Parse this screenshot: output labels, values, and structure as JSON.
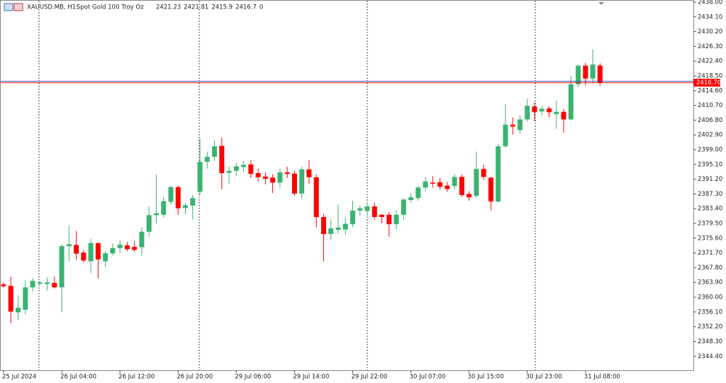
{
  "chart_data": {
    "type": "candlestick",
    "symbol": "XAUUSD.MB, H1:",
    "description": "Spot Gold 100 Troy Oz",
    "info_value": 0,
    "categories": [
      "25 Jul 2024",
      null,
      null,
      null,
      null,
      null,
      null,
      null,
      "26 Jul 04:00",
      null,
      null,
      null,
      null,
      null,
      null,
      null,
      "26 Jul 12:00",
      null,
      null,
      null,
      null,
      null,
      null,
      null,
      "26 Jul 20:00",
      null,
      null,
      null,
      null,
      null,
      null,
      null,
      "29 Jul 06:00",
      null,
      null,
      null,
      null,
      null,
      null,
      null,
      "29 Jul 14:00",
      null,
      null,
      null,
      null,
      null,
      null,
      null,
      "29 Jul 22:00",
      null,
      null,
      null,
      null,
      null,
      null,
      null,
      "30 Jul 07:00",
      null,
      null,
      null,
      null,
      null,
      null,
      null,
      "30 Jul 15:00",
      null,
      null,
      null,
      null,
      null,
      null,
      null,
      "30 Jul 23:00",
      null,
      null,
      null,
      null,
      null,
      null,
      null,
      "31 Jul 08:00",
      null,
      null
    ],
    "open": [
      2363.4,
      2363.0,
      2356.0,
      2356.7,
      2362.6,
      2363.6,
      2363.5,
      2363.8,
      2362.6,
      2373.5,
      2373.8,
      2371.8,
      2369.5,
      2374.3,
      2369.5,
      2371.6,
      2373.0,
      2373.7,
      2373.3,
      2373.2,
      2377.3,
      2381.7,
      2381.8,
      2385.2,
      2389.1,
      2383.6,
      2384.2,
      2387.9,
      2395.8,
      2397.1,
      2400.0,
      2392.9,
      2393.4,
      2394.4,
      2395.1,
      2392.8,
      2391.9,
      2391.6,
      2390.3,
      2393.0,
      2392.7,
      2387.4,
      2393.8,
      2391.7,
      2381.2,
      2376.7,
      2377.8,
      2377.9,
      2379.3,
      2382.9,
      2382.8,
      2384.0,
      2381.8,
      2381.8,
      2379.3,
      2381.8,
      2385.7,
      2386.2,
      2389.0,
      2390.3,
      2390.4,
      2389.5,
      2389.4,
      2391.8,
      2387.3,
      2386.8,
      2393.9,
      2391.6,
      2385.3,
      2399.9,
      2405.6,
      2404.2,
      2407.0,
      2410.4,
      2409.1,
      2409.9,
      2408.4,
      2409.0,
      2407.0,
      2416.3,
      2421.2,
      2417.8,
      2421.23
    ],
    "high": [
      2364.0,
      2365.4,
      2360.5,
      2364.5,
      2365.0,
      2364.3,
      2365.2,
      2365.5,
      2374.0,
      2378.9,
      2377.5,
      2372.5,
      2375.5,
      2374.5,
      2372.2,
      2374.2,
      2375.0,
      2374.6,
      2374.8,
      2378.5,
      2384.0,
      2392.5,
      2386.5,
      2389.5,
      2389.5,
      2385.0,
      2387.0,
      2402.0,
      2398.5,
      2401.5,
      2402.2,
      2394.5,
      2395.5,
      2396.0,
      2396.2,
      2394.0,
      2393.0,
      2392.5,
      2394.0,
      2394.5,
      2393.5,
      2394.5,
      2396.2,
      2392.5,
      2382.0,
      2380.5,
      2384.5,
      2381.0,
      2385.5,
      2384.2,
      2385.0,
      2385.0,
      2382.0,
      2382.5,
      2383.0,
      2386.2,
      2387.5,
      2389.5,
      2391.8,
      2392.0,
      2391.5,
      2390.5,
      2392.5,
      2392.5,
      2388.0,
      2398.5,
      2395.0,
      2391.8,
      2400.5,
      2411.0,
      2407.5,
      2408.0,
      2412.5,
      2411.5,
      2410.5,
      2410.5,
      2412.0,
      2409.8,
      2418.5,
      2421.5,
      2422.0,
      2425.5,
      2421.81
    ],
    "low": [
      2362.5,
      2353.2,
      2354.0,
      2355.5,
      2361.5,
      2363.2,
      2361.8,
      2362.3,
      2356.0,
      2369.5,
      2369.8,
      2369.2,
      2366.3,
      2365.0,
      2368.0,
      2371.0,
      2371.6,
      2372.2,
      2372.0,
      2371.0,
      2376.0,
      2379.5,
      2381.0,
      2384.5,
      2381.8,
      2382.0,
      2380.5,
      2387.0,
      2394.0,
      2396.0,
      2388.5,
      2390.0,
      2392.0,
      2393.2,
      2391.5,
      2390.5,
      2389.8,
      2387.5,
      2389.0,
      2391.5,
      2386.8,
      2386.0,
      2390.0,
      2378.5,
      2369.5,
      2375.2,
      2376.8,
      2376.5,
      2378.5,
      2381.5,
      2381.0,
      2380.5,
      2379.5,
      2376.0,
      2378.0,
      2380.5,
      2385.0,
      2385.5,
      2388.0,
      2389.0,
      2388.5,
      2387.8,
      2388.5,
      2386.5,
      2385.5,
      2386.2,
      2391.0,
      2383.0,
      2385.0,
      2399.5,
      2403.0,
      2403.3,
      2406.5,
      2406.5,
      2408.0,
      2407.5,
      2404.5,
      2403.5,
      2406.8,
      2415.5,
      2416.0,
      2416.5,
      2415.9
    ],
    "close": [
      2362.9,
      2356.2,
      2357.2,
      2362.6,
      2364.3,
      2363.9,
      2363.9,
      2362.6,
      2373.5,
      2374.0,
      2371.5,
      2369.7,
      2374.3,
      2370.0,
      2371.6,
      2373.0,
      2373.9,
      2372.7,
      2372.5,
      2377.3,
      2381.7,
      2382.2,
      2385.4,
      2389.1,
      2383.5,
      2384.3,
      2386.2,
      2395.8,
      2397.1,
      2399.9,
      2392.8,
      2393.4,
      2394.6,
      2395.0,
      2392.6,
      2391.7,
      2391.3,
      2390.3,
      2393.0,
      2392.6,
      2387.4,
      2393.8,
      2391.7,
      2381.2,
      2376.7,
      2378.2,
      2378.4,
      2379.4,
      2382.9,
      2383.5,
      2384.0,
      2381.2,
      2381.2,
      2379.3,
      2381.8,
      2385.8,
      2386.4,
      2389.0,
      2390.6,
      2390.1,
      2389.2,
      2388.6,
      2391.8,
      2387.0,
      2386.4,
      2393.9,
      2391.8,
      2385.3,
      2399.9,
      2405.6,
      2405.1,
      2407.0,
      2410.6,
      2408.9,
      2409.8,
      2408.9,
      2409.0,
      2407.0,
      2416.3,
      2421.2,
      2417.8,
      2421.5,
      2416.7
    ],
    "up_color": "#3cb371",
    "down_color": "#ff0000",
    "ylim": [
      2340.7,
      2438.56
    ],
    "yticks": [
      {
        "value": 2438,
        "label": "2438.00"
      },
      {
        "value": 2434.1,
        "label": "2434.10"
      },
      {
        "value": 2430.2,
        "label": "2430.20"
      },
      {
        "value": 2426.3,
        "label": "2426.30"
      },
      {
        "value": 2422.4,
        "label": "2422.40"
      },
      {
        "value": 2418.5,
        "label": "2418.50"
      },
      {
        "value": 2414.6,
        "label": "2414.60"
      },
      {
        "value": 2410.7,
        "label": "2410.70"
      },
      {
        "value": 2406.8,
        "label": "2406.80"
      },
      {
        "value": 2402.9,
        "label": "2402.90"
      },
      {
        "value": 2399,
        "label": "2399.00"
      },
      {
        "value": 2395.1,
        "label": "2395.10"
      },
      {
        "value": 2391.2,
        "label": "2391.20"
      },
      {
        "value": 2387.3,
        "label": "2387.30"
      },
      {
        "value": 2383.4,
        "label": "2383.40"
      },
      {
        "value": 2379.5,
        "label": "2379.50"
      },
      {
        "value": 2375.6,
        "label": "2375.60"
      },
      {
        "value": 2371.7,
        "label": "2371.70"
      },
      {
        "value": 2367.8,
        "label": "2367.80"
      },
      {
        "value": 2363.9,
        "label": "2363.90"
      },
      {
        "value": 2360,
        "label": "2360.00"
      },
      {
        "value": 2356.1,
        "label": "2356.10"
      },
      {
        "value": 2352.2,
        "label": "2352.20"
      },
      {
        "value": 2348.3,
        "label": "2348.30"
      },
      {
        "value": 2344.4,
        "label": "2344.40"
      }
    ],
    "last_price": {
      "value": 2416.7,
      "label": "2416.70"
    },
    "ask_price": 2417.1,
    "ask_color": "#3f51b5"
  }
}
